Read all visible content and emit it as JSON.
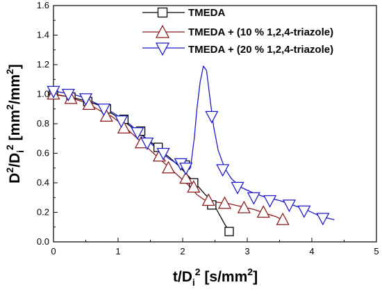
{
  "chart_data": {
    "type": "line",
    "title": "",
    "xlabel": "t/D_i^2 [s/mm^2]",
    "ylabel": "D^2/D_i^2 [mm^2/mm^2]",
    "xlim": [
      0,
      5
    ],
    "ylim": [
      0.0,
      1.6
    ],
    "x_ticks": [
      "0",
      "1",
      "2",
      "3",
      "4",
      "5"
    ],
    "y_ticks": [
      "0.0",
      "0.2",
      "0.4",
      "0.6",
      "0.8",
      "1.0",
      "1.2",
      "1.4",
      "1.6"
    ],
    "grid": false,
    "legend_position": "top-right",
    "series": [
      {
        "name": "TMEDA",
        "color": "#000000",
        "marker": "square",
        "line": [
          [
            0.0,
            1.0
          ],
          [
            0.12,
            0.99
          ],
          [
            0.28,
            0.98
          ],
          [
            0.45,
            0.96
          ],
          [
            0.6,
            0.94
          ],
          [
            0.75,
            0.92
          ],
          [
            0.9,
            0.87
          ],
          [
            1.05,
            0.83
          ],
          [
            1.2,
            0.78
          ],
          [
            1.35,
            0.73
          ],
          [
            1.5,
            0.68
          ],
          [
            1.65,
            0.62
          ],
          [
            1.8,
            0.57
          ],
          [
            1.95,
            0.51
          ],
          [
            2.1,
            0.44
          ],
          [
            2.25,
            0.37
          ],
          [
            2.35,
            0.32
          ],
          [
            2.45,
            0.28
          ],
          [
            2.55,
            0.2
          ],
          [
            2.65,
            0.12
          ],
          [
            2.72,
            0.07
          ]
        ],
        "markers": [
          [
            0.0,
            1.0
          ],
          [
            0.27,
            0.98
          ],
          [
            0.53,
            0.95
          ],
          [
            0.82,
            0.9
          ],
          [
            1.09,
            0.83
          ],
          [
            1.35,
            0.75
          ],
          [
            1.62,
            0.64
          ],
          [
            2.04,
            0.52
          ],
          [
            2.17,
            0.4
          ],
          [
            2.45,
            0.25
          ],
          [
            2.72,
            0.07
          ]
        ]
      },
      {
        "name": "TMEDA + (10 % 1,2,4-triazole)",
        "color": "#8b1a1a",
        "marker": "triangle-up",
        "line": [
          [
            0.0,
            1.0
          ],
          [
            0.15,
            0.99
          ],
          [
            0.3,
            0.97
          ],
          [
            0.45,
            0.95
          ],
          [
            0.6,
            0.92
          ],
          [
            0.75,
            0.88
          ],
          [
            0.9,
            0.85
          ],
          [
            1.05,
            0.8
          ],
          [
            1.2,
            0.74
          ],
          [
            1.35,
            0.68
          ],
          [
            1.5,
            0.62
          ],
          [
            1.65,
            0.56
          ],
          [
            1.8,
            0.5
          ],
          [
            1.95,
            0.44
          ],
          [
            2.1,
            0.38
          ],
          [
            2.22,
            0.32
          ],
          [
            2.35,
            0.28
          ],
          [
            2.5,
            0.27
          ],
          [
            2.7,
            0.26
          ],
          [
            2.9,
            0.24
          ],
          [
            3.1,
            0.22
          ],
          [
            3.3,
            0.19
          ],
          [
            3.45,
            0.17
          ],
          [
            3.58,
            0.14
          ]
        ],
        "markers": [
          [
            0.0,
            1.0
          ],
          [
            0.27,
            0.97
          ],
          [
            0.55,
            0.93
          ],
          [
            0.82,
            0.85
          ],
          [
            1.09,
            0.77
          ],
          [
            1.36,
            0.67
          ],
          [
            1.64,
            0.58
          ],
          [
            1.78,
            0.5
          ],
          [
            2.05,
            0.43
          ],
          [
            2.17,
            0.37
          ],
          [
            2.4,
            0.28
          ],
          [
            2.65,
            0.26
          ],
          [
            2.95,
            0.23
          ],
          [
            3.25,
            0.2
          ],
          [
            3.55,
            0.15
          ]
        ]
      },
      {
        "name": "TMEDA + (20 % 1,2,4-triazole)",
        "color": "#1a1acc",
        "marker": "triangle-down",
        "line": [
          [
            0.0,
            1.02
          ],
          [
            0.15,
            1.01
          ],
          [
            0.3,
            1.0
          ],
          [
            0.45,
            0.98
          ],
          [
            0.6,
            0.95
          ],
          [
            0.75,
            0.92
          ],
          [
            0.9,
            0.88
          ],
          [
            1.05,
            0.84
          ],
          [
            1.2,
            0.79
          ],
          [
            1.35,
            0.73
          ],
          [
            1.5,
            0.67
          ],
          [
            1.65,
            0.61
          ],
          [
            1.8,
            0.56
          ],
          [
            1.95,
            0.52
          ],
          [
            2.05,
            0.49
          ],
          [
            2.12,
            0.5
          ],
          [
            2.18,
            0.7
          ],
          [
            2.22,
            0.9
          ],
          [
            2.27,
            1.08
          ],
          [
            2.32,
            1.19
          ],
          [
            2.37,
            1.16
          ],
          [
            2.42,
            0.98
          ],
          [
            2.48,
            0.78
          ],
          [
            2.55,
            0.62
          ],
          [
            2.65,
            0.5
          ],
          [
            2.75,
            0.43
          ],
          [
            2.9,
            0.37
          ],
          [
            3.1,
            0.33
          ],
          [
            3.3,
            0.3
          ],
          [
            3.5,
            0.28
          ],
          [
            3.7,
            0.25
          ],
          [
            3.9,
            0.22
          ],
          [
            4.1,
            0.18
          ],
          [
            4.25,
            0.16
          ],
          [
            4.35,
            0.15
          ]
        ],
        "markers": [
          [
            0.0,
            1.02
          ],
          [
            0.23,
            1.0
          ],
          [
            0.5,
            0.97
          ],
          [
            0.78,
            0.9
          ],
          [
            1.05,
            0.82
          ],
          [
            1.3,
            0.74
          ],
          [
            1.45,
            0.67
          ],
          [
            1.7,
            0.6
          ],
          [
            1.97,
            0.53
          ],
          [
            2.05,
            0.5
          ],
          [
            2.45,
            0.85
          ],
          [
            2.62,
            0.49
          ],
          [
            2.85,
            0.37
          ],
          [
            3.1,
            0.3
          ],
          [
            3.35,
            0.28
          ],
          [
            3.65,
            0.25
          ],
          [
            3.88,
            0.21
          ],
          [
            4.17,
            0.16
          ]
        ]
      }
    ]
  }
}
